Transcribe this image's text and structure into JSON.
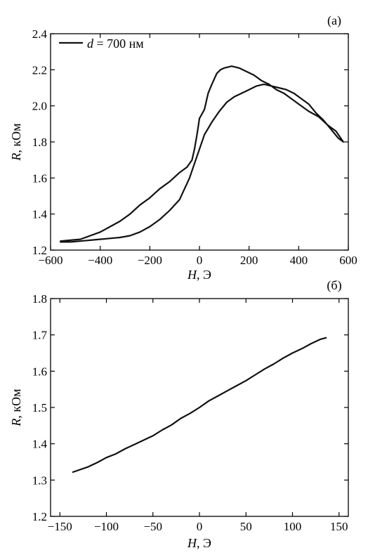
{
  "chart_data": [
    {
      "type": "line",
      "panel_label": "(a)",
      "xlabel_var": "H",
      "xlabel_unit": ", Э",
      "ylabel_var": "R",
      "ylabel_unit": ", кОм",
      "xlim": [
        -600,
        600
      ],
      "ylim": [
        1.2,
        2.4
      ],
      "xticks": [
        -600,
        -400,
        -200,
        0,
        200,
        400,
        600
      ],
      "yticks": [
        1.2,
        1.4,
        1.6,
        1.8,
        2.0,
        2.2,
        2.4
      ],
      "xtick_labels": [
        "−600",
        "−400",
        "−200",
        "0",
        "200",
        "400",
        "600"
      ],
      "ytick_labels": [
        "1.2",
        "1.4",
        "1.6",
        "1.8",
        "2.0",
        "2.2",
        "2.4"
      ],
      "legend": {
        "var": "d",
        "text": " = 700 нм",
        "position": "top-left"
      },
      "grid": false,
      "series": [
        {
          "name": "d = 700 нм",
          "color": "#111111",
          "x": [
            -560,
            -520,
            -480,
            -440,
            -400,
            -360,
            -320,
            -280,
            -240,
            -200,
            -160,
            -120,
            -80,
            -50,
            -30,
            -20,
            -10,
            0,
            20,
            35,
            50,
            60,
            70,
            85,
            100,
            130,
            160,
            190,
            220,
            250,
            280,
            310,
            340,
            370,
            400,
            440,
            480,
            520,
            550,
            580,
            560,
            530,
            500,
            470,
            440,
            410,
            380,
            350,
            320,
            290,
            260,
            230,
            200,
            170,
            140,
            110,
            80,
            50,
            20,
            0,
            -20,
            -40,
            -60,
            -80,
            -120,
            -160,
            -200,
            -240,
            -280,
            -320,
            -360,
            -400,
            -440,
            -480,
            -520,
            -560
          ],
          "y": [
            1.25,
            1.255,
            1.26,
            1.28,
            1.3,
            1.33,
            1.36,
            1.4,
            1.45,
            1.49,
            1.54,
            1.58,
            1.63,
            1.66,
            1.7,
            1.76,
            1.84,
            1.93,
            1.98,
            2.07,
            2.12,
            2.15,
            2.18,
            2.2,
            2.21,
            2.22,
            2.21,
            2.19,
            2.17,
            2.14,
            2.12,
            2.09,
            2.07,
            2.04,
            2.01,
            1.97,
            1.94,
            1.89,
            1.86,
            1.8,
            1.82,
            1.87,
            1.92,
            1.96,
            2.01,
            2.04,
            2.07,
            2.09,
            2.1,
            2.11,
            2.12,
            2.11,
            2.09,
            2.07,
            2.05,
            2.02,
            1.97,
            1.91,
            1.84,
            1.76,
            1.68,
            1.6,
            1.54,
            1.48,
            1.42,
            1.37,
            1.33,
            1.3,
            1.28,
            1.27,
            1.265,
            1.26,
            1.255,
            1.25,
            1.245,
            1.245
          ]
        }
      ]
    },
    {
      "type": "line",
      "panel_label": "(б)",
      "xlabel_var": "H",
      "xlabel_unit": ", Э",
      "ylabel_var": "R",
      "ylabel_unit": ", кОм",
      "xlim": [
        -160,
        160
      ],
      "ylim": [
        1.2,
        1.8
      ],
      "xticks": [
        -150,
        -100,
        -50,
        0,
        50,
        100,
        150
      ],
      "yticks": [
        1.2,
        1.3,
        1.4,
        1.5,
        1.6,
        1.7,
        1.8
      ],
      "xtick_labels": [
        "−150",
        "−100",
        "−50",
        "0",
        "50",
        "100",
        "150"
      ],
      "ytick_labels": [
        "1.2",
        "1.3",
        "1.4",
        "1.5",
        "1.6",
        "1.7",
        "1.8"
      ],
      "grid": false,
      "series": [
        {
          "color": "#111111",
          "x": [
            -136,
            -120,
            -110,
            -100,
            -90,
            -80,
            -70,
            -60,
            -50,
            -40,
            -30,
            -20,
            -10,
            0,
            10,
            20,
            30,
            40,
            50,
            60,
            70,
            80,
            90,
            100,
            110,
            120,
            130,
            136
          ],
          "y": [
            1.322,
            1.336,
            1.348,
            1.362,
            1.372,
            1.386,
            1.398,
            1.41,
            1.422,
            1.438,
            1.452,
            1.47,
            1.484,
            1.5,
            1.518,
            1.532,
            1.546,
            1.56,
            1.574,
            1.59,
            1.606,
            1.62,
            1.636,
            1.65,
            1.662,
            1.676,
            1.688,
            1.692
          ]
        }
      ]
    }
  ]
}
